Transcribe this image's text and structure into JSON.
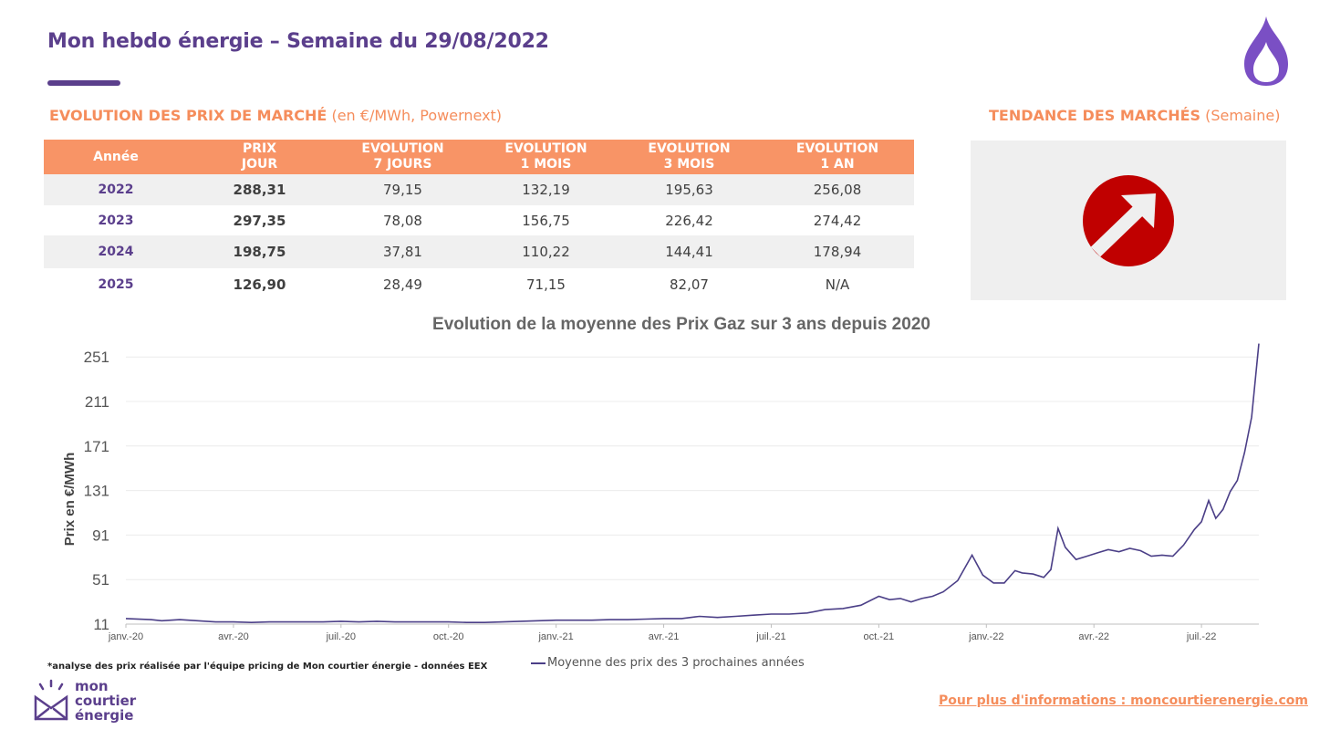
{
  "header": {
    "title": "Mon hebdo énergie – Semaine du 29/08/2022"
  },
  "market_prices": {
    "title_bold": "EVOLUTION DES PRIX DE MARCHÉ",
    "title_rest": " (en €/MWh, Powernext)",
    "columns": [
      "Année",
      "PRIX\nJOUR",
      "EVOLUTION\n7 JOURS",
      "EVOLUTION\n1 MOIS",
      "EVOLUTION\n3 MOIS",
      "EVOLUTION\n1 AN"
    ],
    "rows": [
      {
        "year": "2022",
        "jour": "288,31",
        "d7": "79,15",
        "m1": "132,19",
        "m3": "195,63",
        "y1": "256,08"
      },
      {
        "year": "2023",
        "jour": "297,35",
        "d7": "78,08",
        "m1": "156,75",
        "m3": "226,42",
        "y1": "274,42"
      },
      {
        "year": "2024",
        "jour": "198,75",
        "d7": "37,81",
        "m1": "110,22",
        "m3": "144,41",
        "y1": "178,94"
      },
      {
        "year": "2025",
        "jour": "126,90",
        "d7": "28,49",
        "m1": "71,15",
        "m3": "82,07",
        "y1": "N/A"
      }
    ]
  },
  "trend": {
    "title_bold": "TENDANCE DES MARCHÉS",
    "title_rest": " (Semaine)",
    "direction": "up",
    "icon": "trend-up-arrow-icon",
    "color": "#c00000"
  },
  "colors": {
    "brand_purple": "#5b3f8c",
    "accent_orange": "#f89466",
    "line": "#4b3f87"
  },
  "chart_data": {
    "type": "line",
    "title": "Evolution de la moyenne des Prix Gaz sur 3 ans depuis 2020",
    "xlabel": "",
    "ylabel": "Prix en €/MWh",
    "ylim": [
      11,
      261
    ],
    "yticks": [
      11,
      51,
      91,
      131,
      171,
      211,
      251
    ],
    "x_tick_labels": [
      "janv.-20",
      "avr.-20",
      "juil.-20",
      "oct.-20",
      "janv.-21",
      "avr.-21",
      "juil.-21",
      "oct.-21",
      "janv.-22",
      "avr.-22",
      "juil.-22"
    ],
    "x_tick_months": [
      0,
      3,
      6,
      9,
      12,
      15,
      18,
      21,
      24,
      27,
      30
    ],
    "grid": true,
    "legend": "bottom",
    "series": [
      {
        "name": "Moyenne des prix des 3 prochaines années",
        "x": [
          0,
          0.7,
          1.0,
          1.5,
          2.0,
          2.5,
          3.0,
          3.5,
          4.0,
          4.5,
          5.0,
          5.5,
          6.0,
          6.5,
          7.0,
          7.5,
          8.0,
          8.5,
          9.0,
          9.5,
          10.0,
          10.5,
          11.0,
          11.5,
          12.0,
          12.5,
          13.0,
          13.5,
          14.0,
          14.5,
          15.0,
          15.5,
          16.0,
          16.5,
          17.0,
          17.5,
          18.0,
          18.5,
          19.0,
          19.5,
          20.0,
          20.5,
          21.0,
          21.3,
          21.6,
          21.9,
          22.2,
          22.5,
          22.8,
          23.2,
          23.6,
          23.9,
          24.2,
          24.5,
          24.8,
          25.0,
          25.3,
          25.6,
          25.8,
          26.0,
          26.2,
          26.5,
          26.8,
          27.1,
          27.4,
          27.7,
          28.0,
          28.3,
          28.6,
          28.9,
          29.2,
          29.5,
          29.8,
          30.0,
          30.2,
          30.4,
          30.6,
          30.8,
          31.0,
          31.2,
          31.4,
          31.6
        ],
        "values": [
          16,
          15,
          14,
          15,
          14,
          13,
          13,
          12.5,
          13,
          13,
          13,
          13,
          13.5,
          13,
          13.5,
          13,
          13,
          13,
          13,
          12.5,
          12.5,
          13,
          13.5,
          14,
          14.5,
          14.5,
          14.5,
          15,
          15,
          15.5,
          16,
          16,
          18,
          17,
          18,
          19,
          20,
          20,
          21,
          24,
          25,
          28,
          36,
          33,
          34,
          31,
          34,
          36,
          40,
          50,
          73,
          55,
          48,
          48,
          59,
          57,
          56,
          53,
          60,
          97,
          80,
          69,
          72,
          75,
          78,
          76,
          79,
          77,
          72,
          73,
          72,
          82,
          96,
          103,
          122,
          106,
          114,
          130,
          140,
          165,
          197,
          263
        ]
      }
    ]
  },
  "footnote": "*analyse des prix réalisée par l'équipe pricing de Mon courtier énergie -  données EEX",
  "logo": {
    "line1": "mon",
    "line2": "courtier",
    "line3": "énergie"
  },
  "website": "Pour plus d'informations : moncourtierenergie.com"
}
